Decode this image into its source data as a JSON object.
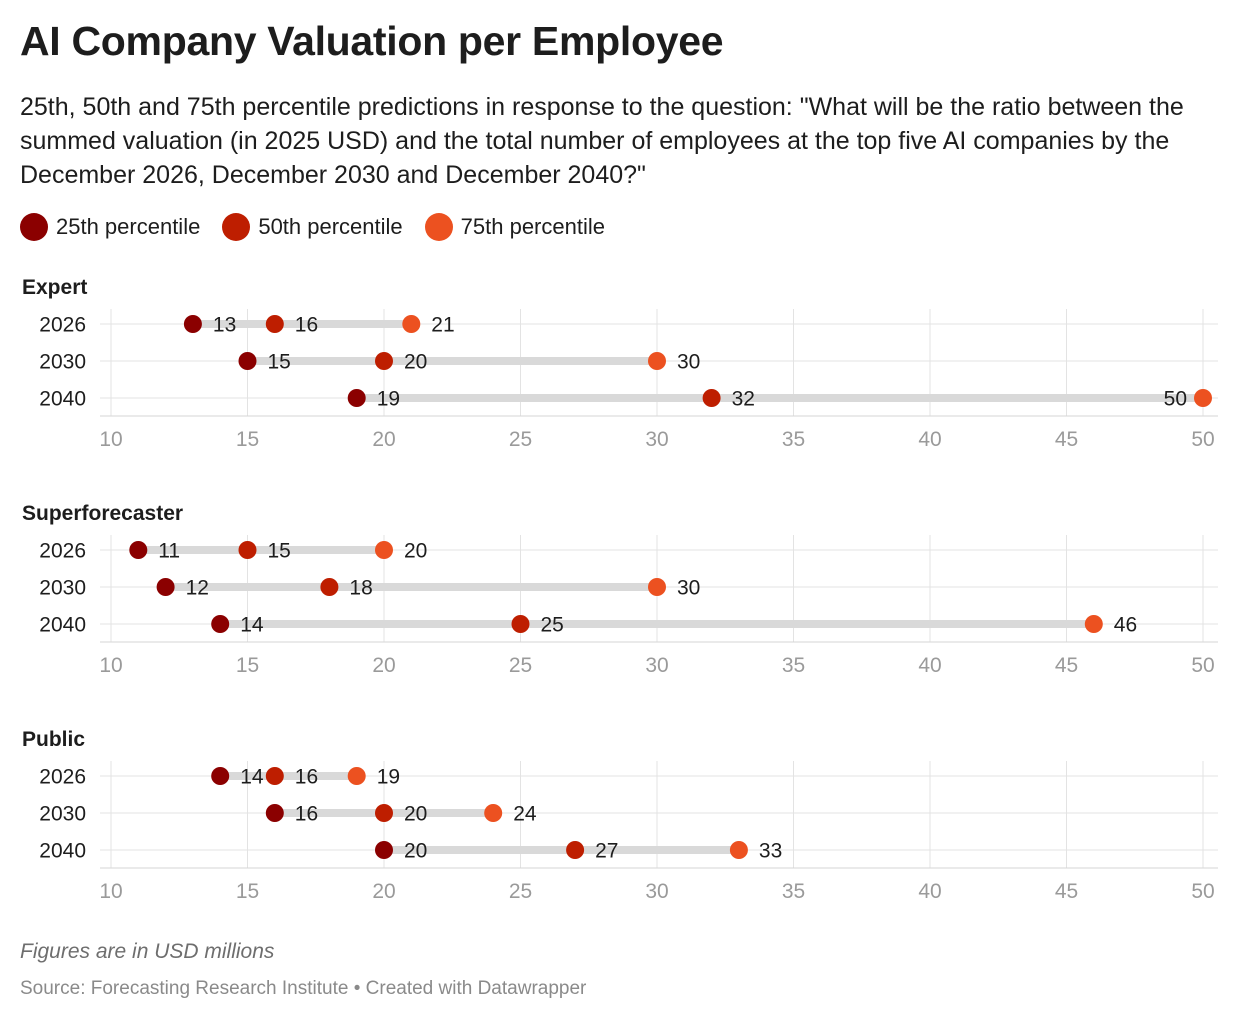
{
  "header": {
    "title": "AI Company Valuation per Employee",
    "subtitle": "25th, 50th and 75th percentile predictions in response to the question: \"What will be the ratio between the summed valuation (in 2025 USD) and the total number of employees at the top five AI companies by the December 2026, December 2030 and December 2040?\""
  },
  "legend": {
    "items": [
      {
        "label": "25th percentile",
        "color": "#8b0000"
      },
      {
        "label": "50th percentile",
        "color": "#be1e00"
      },
      {
        "label": "75th percentile",
        "color": "#ec5120"
      }
    ]
  },
  "footer": {
    "note": "Figures are in USD millions",
    "source": "Source: Forecasting Research Institute • Created with Datawrapper"
  },
  "chart_data": {
    "type": "dot-range",
    "x_ticks": [
      10,
      15,
      20,
      25,
      30,
      35,
      40,
      45,
      50
    ],
    "xlim": [
      10,
      50
    ],
    "series_names": [
      "25th percentile",
      "50th percentile",
      "75th percentile"
    ],
    "colors": [
      "#8b0000",
      "#be1e00",
      "#ec5120"
    ],
    "panels": [
      {
        "title": "Expert",
        "rows": [
          {
            "label": "2026",
            "p25": 13,
            "p50": 16,
            "p75": 21
          },
          {
            "label": "2030",
            "p25": 15,
            "p50": 20,
            "p75": 30
          },
          {
            "label": "2040",
            "p25": 19,
            "p50": 32,
            "p75": 50
          }
        ]
      },
      {
        "title": "Superforecaster",
        "rows": [
          {
            "label": "2026",
            "p25": 11,
            "p50": 15,
            "p75": 20
          },
          {
            "label": "2030",
            "p25": 12,
            "p50": 18,
            "p75": 30
          },
          {
            "label": "2040",
            "p25": 14,
            "p50": 25,
            "p75": 46
          }
        ]
      },
      {
        "title": "Public",
        "rows": [
          {
            "label": "2026",
            "p25": 14,
            "p50": 16,
            "p75": 19
          },
          {
            "label": "2030",
            "p25": 16,
            "p50": 20,
            "p75": 24
          },
          {
            "label": "2040",
            "p25": 20,
            "p50": 27,
            "p75": 33
          }
        ]
      }
    ]
  }
}
